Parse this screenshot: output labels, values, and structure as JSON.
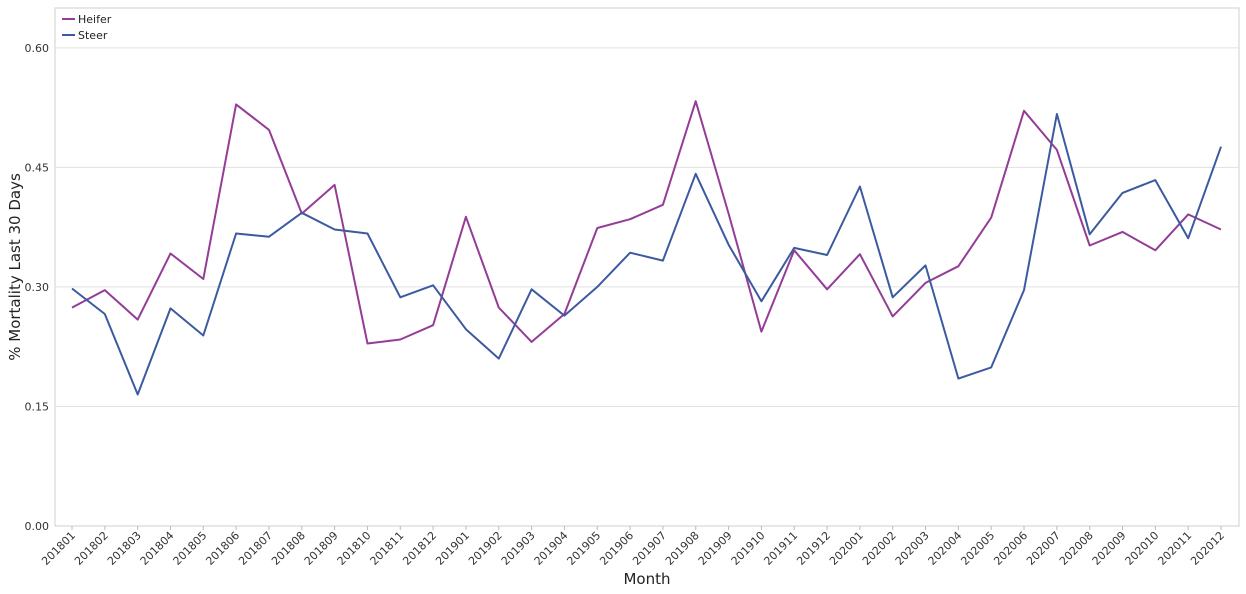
{
  "chart_data": {
    "type": "line",
    "xlabel": "Month",
    "ylabel": "% Mortality Last 30 Days",
    "ylim": [
      0,
      0.65
    ],
    "yticks": [
      "0.00",
      "0.15",
      "0.30",
      "0.45",
      "0.60"
    ],
    "grid": "horizontal",
    "legend_position": "top-left",
    "categories": [
      "201801",
      "201802",
      "201803",
      "201804",
      "201805",
      "201806",
      "201807",
      "201808",
      "201809",
      "201810",
      "201811",
      "201812",
      "201901",
      "201902",
      "201903",
      "201904",
      "201905",
      "201906",
      "201907",
      "201908",
      "201909",
      "201910",
      "201911",
      "201912",
      "202001",
      "202002",
      "202003",
      "202004",
      "202005",
      "202006",
      "202007",
      "202008",
      "202009",
      "202010",
      "202011",
      "202012"
    ],
    "series": [
      {
        "name": "Heifer",
        "color": "#943c96",
        "values": [
          0.274,
          0.296,
          0.259,
          0.342,
          0.31,
          0.529,
          0.497,
          0.392,
          0.428,
          0.229,
          0.234,
          0.252,
          0.388,
          0.274,
          0.231,
          0.266,
          0.374,
          0.385,
          0.403,
          0.533,
          0.392,
          0.244,
          0.346,
          0.297,
          0.341,
          0.263,
          0.305,
          0.326,
          0.387,
          0.521,
          0.472,
          0.352,
          0.369,
          0.346,
          0.391,
          0.372
        ]
      },
      {
        "name": "Steer",
        "color": "#3c5aa0",
        "values": [
          0.298,
          0.266,
          0.165,
          0.273,
          0.239,
          0.367,
          0.363,
          0.393,
          0.372,
          0.367,
          0.287,
          0.302,
          0.247,
          0.21,
          0.297,
          0.264,
          0.3,
          0.343,
          0.333,
          0.442,
          0.353,
          0.282,
          0.349,
          0.34,
          0.426,
          0.287,
          0.327,
          0.185,
          0.199,
          0.296,
          0.517,
          0.366,
          0.418,
          0.434,
          0.361,
          0.476
        ]
      }
    ]
  }
}
